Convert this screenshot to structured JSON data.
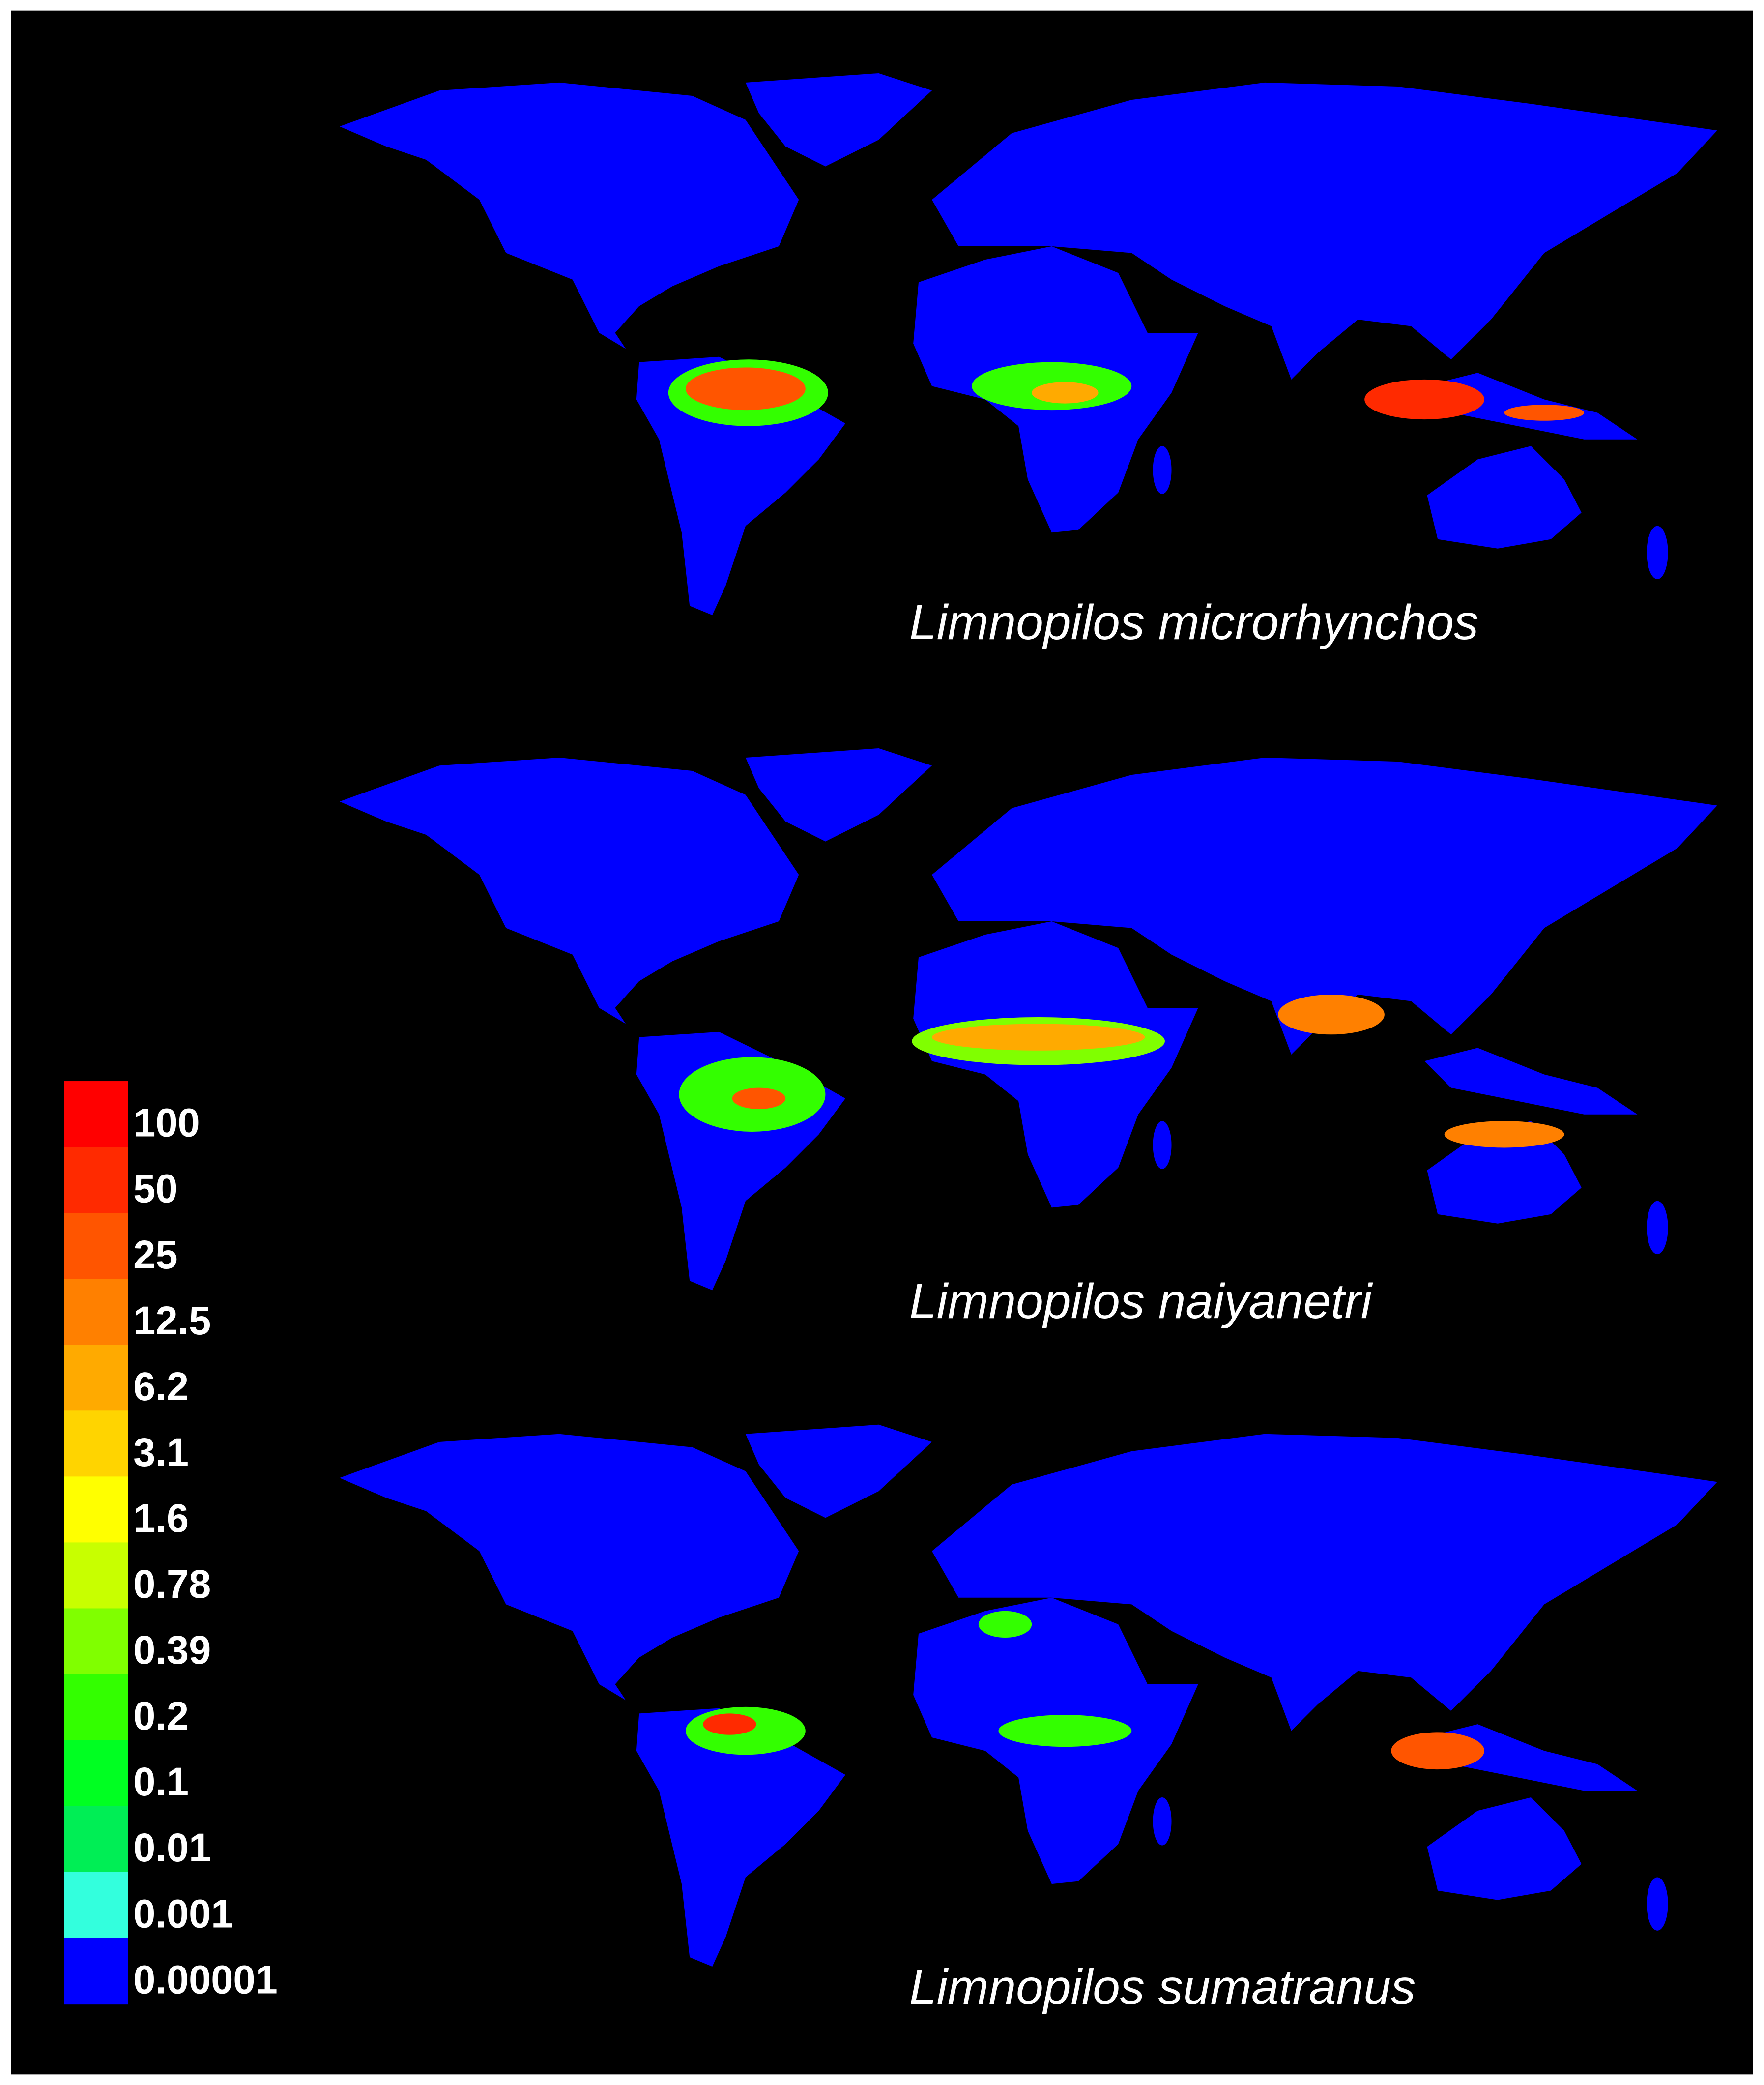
{
  "panels": [
    {
      "label": "Limnopilos microrhynchos"
    },
    {
      "label": "Limnopilos naiyanetri"
    },
    {
      "label": "Limnopilos sumatranus"
    }
  ],
  "legend": {
    "items": [
      {
        "label": "100",
        "color": "#ff0000"
      },
      {
        "label": "50",
        "color": "#ff2a00"
      },
      {
        "label": "25",
        "color": "#ff5500"
      },
      {
        "label": "12.5",
        "color": "#ff8000"
      },
      {
        "label": "6.2",
        "color": "#ffaa00"
      },
      {
        "label": "3.1",
        "color": "#ffd400"
      },
      {
        "label": "1.6",
        "color": "#ffff00"
      },
      {
        "label": "0.78",
        "color": "#c8ff00"
      },
      {
        "label": "0.39",
        "color": "#80ff00"
      },
      {
        "label": "0.2",
        "color": "#33ff00"
      },
      {
        "label": "0.1",
        "color": "#00ff22"
      },
      {
        "label": "0.01",
        "color": "#00ee55"
      },
      {
        "label": "0.001",
        "color": "#33ffdd"
      },
      {
        "label": "0.00001",
        "color": "#0000ff"
      }
    ]
  }
}
